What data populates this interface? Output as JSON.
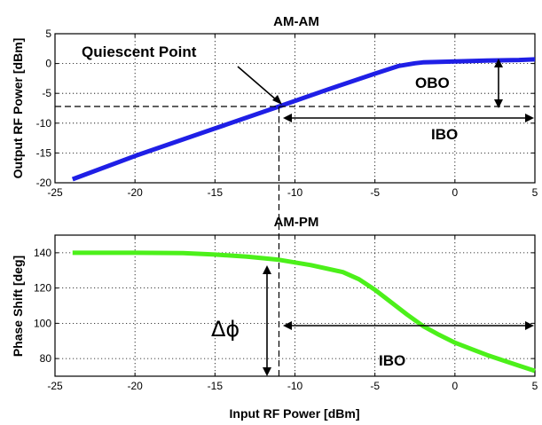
{
  "chart_data": [
    {
      "type": "line",
      "title": "AM-AM",
      "xlabel": "",
      "ylabel": "Output RF Power [dBm]",
      "xlim": [
        -25,
        5
      ],
      "ylim": [
        -20,
        5
      ],
      "xticks": [
        -25,
        -20,
        -15,
        -10,
        -5,
        0,
        5
      ],
      "yticks": [
        -20,
        -15,
        -10,
        -5,
        0,
        5
      ],
      "grid": true,
      "series": [
        {
          "color": "#1f1fe6",
          "x": [
            -23.9,
            -20,
            -15,
            -11,
            -8,
            -5,
            -3.5,
            -2.5,
            -2,
            0,
            2,
            4,
            5
          ],
          "y": [
            -19.4,
            -15.5,
            -10.9,
            -7.2,
            -4.4,
            -1.7,
            -0.4,
            0.05,
            0.2,
            0.35,
            0.5,
            0.6,
            0.7
          ]
        }
      ],
      "annotations": {
        "quiescent_label": "Quiescent Point",
        "obo_label": "OBO",
        "ibo_label": "IBO",
        "quiescent_point": [
          -11,
          -7.2
        ]
      }
    },
    {
      "type": "line",
      "title": "AM-PM",
      "xlabel": "Input RF Power [dBm]",
      "ylabel": "Phase Shift [deg]",
      "xlim": [
        -25,
        5
      ],
      "ylim": [
        70,
        150
      ],
      "xticks": [
        -25,
        -20,
        -15,
        -10,
        -5,
        0,
        5
      ],
      "yticks": [
        80,
        100,
        120,
        140
      ],
      "grid": true,
      "series": [
        {
          "color": "#4cf01a",
          "x": [
            -23.9,
            -20,
            -17,
            -15,
            -13,
            -11,
            -9,
            -7,
            -6,
            -5,
            -4,
            -3,
            -2,
            -1,
            0,
            1,
            2,
            3,
            4,
            5
          ],
          "y": [
            140,
            140,
            139.8,
            139,
            137.8,
            136,
            133,
            129,
            125,
            119,
            112,
            105,
            98.5,
            93.5,
            89,
            85.5,
            82,
            79,
            76,
            73
          ]
        }
      ],
      "annotations": {
        "delta_phi_label": "Δϕ",
        "ibo_label": "IBO"
      }
    }
  ]
}
